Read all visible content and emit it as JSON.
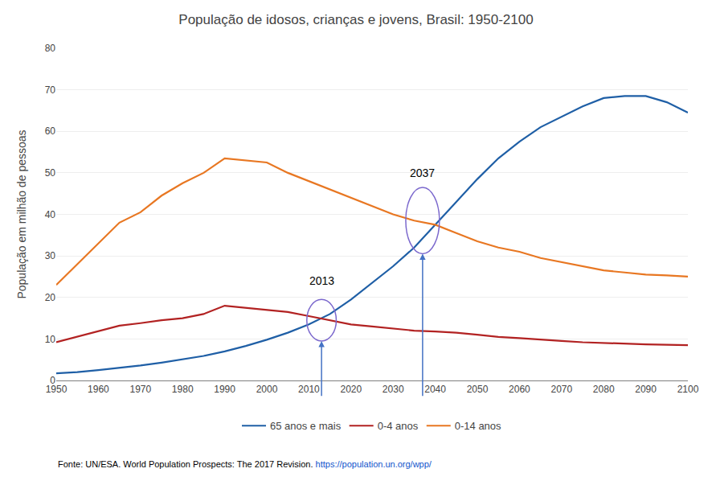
{
  "chart_data": {
    "type": "line",
    "title": "População de idosos, crianças e jovens, Brasil: 1950-2100",
    "y_label": "População em milhão de pessoas",
    "x": [
      1950,
      1955,
      1960,
      1965,
      1970,
      1975,
      1980,
      1985,
      1990,
      1995,
      2000,
      2005,
      2010,
      2015,
      2020,
      2025,
      2030,
      2035,
      2040,
      2045,
      2050,
      2055,
      2060,
      2065,
      2070,
      2075,
      2080,
      2085,
      2090,
      2095,
      2100
    ],
    "series": [
      {
        "name": "65 anos e mais",
        "color": "#1F5FA6",
        "values": [
          1.7,
          2.0,
          2.5,
          3.0,
          3.6,
          4.3,
          5.1,
          5.9,
          7.0,
          8.3,
          9.8,
          11.5,
          13.5,
          16.0,
          19.5,
          23.5,
          27.5,
          32.0,
          37.5,
          43.0,
          48.5,
          53.5,
          57.5,
          61.0,
          63.5,
          66.0,
          68.0,
          68.5,
          68.5,
          67.0,
          64.5
        ]
      },
      {
        "name": "0-4 anos",
        "color": "#B22222",
        "values": [
          9.2,
          10.5,
          11.8,
          13.2,
          13.8,
          14.5,
          15.0,
          16.0,
          18.0,
          17.5,
          17.0,
          16.5,
          15.5,
          14.5,
          13.5,
          13.0,
          12.5,
          12.0,
          11.8,
          11.5,
          11.0,
          10.5,
          10.2,
          9.8,
          9.5,
          9.2,
          9.0,
          8.8,
          8.7,
          8.6,
          8.5
        ]
      },
      {
        "name": "0-14 anos",
        "color": "#E87722",
        "values": [
          23.0,
          28.0,
          33.0,
          38.0,
          40.5,
          44.5,
          47.5,
          50.0,
          53.5,
          53.0,
          52.5,
          50.0,
          48.0,
          46.0,
          44.0,
          42.0,
          40.0,
          38.5,
          37.5,
          35.5,
          33.5,
          32.0,
          31.0,
          29.5,
          28.5,
          27.5,
          26.5,
          26.0,
          25.5,
          25.3,
          25.0
        ]
      }
    ],
    "xlim": [
      1950,
      2100
    ],
    "xticks": [
      1950,
      1960,
      1970,
      1980,
      1990,
      2000,
      2010,
      2020,
      2030,
      2040,
      2050,
      2060,
      2070,
      2080,
      2090,
      2100
    ],
    "ylim": [
      0,
      80
    ],
    "yticks": [
      0,
      10,
      20,
      30,
      40,
      50,
      60,
      70,
      80
    ],
    "grid": true,
    "legend": "bottom",
    "annotations": [
      {
        "text": "2013",
        "x": 2013,
        "y": 22,
        "ellipse": {
          "x": 2013,
          "y": 14.5,
          "width": 7,
          "height": 10,
          "color": "#7B68CD"
        },
        "arrow": {
          "x": 2013,
          "from_y": -4,
          "to_y": 9.5,
          "color": "#4472C4"
        }
      },
      {
        "text": "2037",
        "x": 2037,
        "y": 48,
        "ellipse": {
          "x": 2037,
          "y": 38.5,
          "width": 8,
          "height": 16,
          "color": "#7B68CD"
        },
        "arrow": {
          "x": 2037,
          "from_y": -4,
          "to_y": 30.5,
          "color": "#4472C4"
        }
      }
    ],
    "source": {
      "text": "Fonte: UN/ESA. World Population Prospects: The 2017 Revision.",
      "url": "https://population.un.org/wpp/",
      "url_color": "#1155CC"
    }
  }
}
